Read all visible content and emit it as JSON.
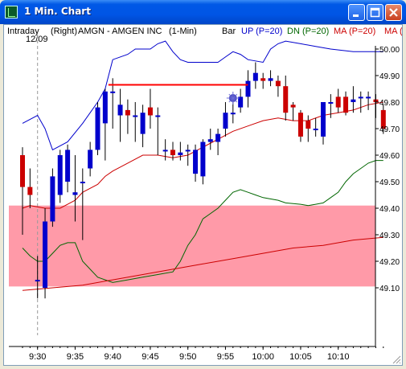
{
  "window": {
    "title": "1 Min. Chart"
  },
  "header": {
    "interval": "Intraday",
    "date": "12/09",
    "axis_side": "(Right)",
    "symbol": "AMGN - AMGEN INC",
    "period": "(1-Min)",
    "style": "Bar",
    "up_label": "UP (P=20)",
    "dn_label": "DN (P=20)",
    "ma_label": "MA (P=20)",
    "ma2_label": "MA ("
  },
  "colors": {
    "up_band": "#0000cc",
    "dn_band": "#006600",
    "ma": "#cc0000",
    "candle_up": "#0000cc",
    "candle_down": "#cc0000",
    "zone": "#ff9aa8",
    "resistance": "#ff0000"
  },
  "axis": {
    "y_ticks": [
      "50.00",
      "49.90",
      "49.80",
      "49.70",
      "49.60",
      "49.50",
      "49.40",
      "49.30",
      "49.20",
      "49.10"
    ],
    "x_ticks": [
      "9:30",
      "9:35",
      "9:40",
      "9:45",
      "9:50",
      "9:55",
      "10:00",
      "10:05",
      "10:10"
    ]
  },
  "chart_data": {
    "type": "candlestick",
    "y_min": 49.05,
    "y_max": 50.02,
    "zone": [
      49.105,
      49.41
    ],
    "resistance": {
      "price": 49.865,
      "from_bar": 11,
      "to_bar": 30
    },
    "marker": {
      "bar": 28,
      "price": 49.815
    },
    "candles": [
      [
        49.6,
        49.63,
        49.3,
        49.48
      ],
      [
        49.48,
        49.55,
        49.4,
        49.45
      ],
      [
        49.13,
        49.22,
        49.06,
        49.13
      ],
      [
        49.1,
        49.4,
        49.06,
        49.35
      ],
      [
        49.35,
        49.55,
        49.33,
        49.52
      ],
      [
        49.45,
        49.62,
        49.42,
        49.6
      ],
      [
        49.5,
        49.64,
        49.46,
        49.62
      ],
      [
        49.45,
        49.6,
        49.35,
        49.46
      ],
      [
        49.5,
        49.55,
        49.28,
        49.5
      ],
      [
        49.55,
        49.65,
        49.52,
        49.62
      ],
      [
        49.62,
        49.8,
        49.6,
        49.78
      ],
      [
        49.72,
        49.85,
        49.58,
        49.84
      ],
      [
        49.84,
        49.89,
        49.7,
        49.84
      ],
      [
        49.75,
        49.85,
        49.65,
        49.79
      ],
      [
        49.77,
        49.81,
        49.68,
        49.75
      ],
      [
        49.75,
        49.8,
        49.65,
        49.75
      ],
      [
        49.68,
        49.79,
        49.63,
        49.76
      ],
      [
        49.78,
        49.85,
        49.7,
        49.75
      ],
      [
        49.75,
        49.78,
        49.6,
        49.75
      ],
      [
        49.62,
        49.66,
        49.58,
        49.62
      ],
      [
        49.62,
        49.65,
        49.58,
        49.6
      ],
      [
        49.6,
        49.65,
        49.58,
        49.61
      ],
      [
        49.62,
        49.64,
        49.56,
        49.62
      ],
      [
        49.53,
        49.64,
        49.5,
        49.62
      ],
      [
        49.52,
        49.66,
        49.49,
        49.65
      ],
      [
        49.65,
        49.7,
        49.62,
        49.66
      ],
      [
        49.65,
        49.7,
        49.6,
        49.68
      ],
      [
        49.7,
        49.8,
        49.67,
        49.76
      ],
      [
        49.76,
        49.8,
        49.72,
        49.76
      ],
      [
        49.78,
        49.85,
        49.76,
        49.82
      ],
      [
        49.82,
        49.92,
        49.78,
        49.88
      ],
      [
        49.88,
        49.95,
        49.85,
        49.91
      ],
      [
        49.89,
        49.91,
        49.85,
        49.88
      ],
      [
        49.88,
        49.92,
        49.86,
        49.89
      ],
      [
        49.88,
        49.9,
        49.82,
        49.86
      ],
      [
        49.86,
        49.9,
        49.73,
        49.76
      ],
      [
        49.79,
        49.8,
        49.73,
        49.78
      ],
      [
        49.76,
        49.77,
        49.65,
        49.67
      ],
      [
        49.73,
        49.75,
        49.65,
        49.7
      ],
      [
        49.7,
        49.74,
        49.67,
        49.7
      ],
      [
        49.67,
        49.8,
        49.64,
        49.8
      ],
      [
        49.8,
        49.83,
        49.74,
        49.8
      ],
      [
        49.82,
        49.85,
        49.76,
        49.78
      ],
      [
        49.82,
        49.84,
        49.75,
        49.76
      ],
      [
        49.8,
        49.86,
        49.76,
        49.81
      ],
      [
        49.82,
        49.84,
        49.76,
        49.82
      ],
      [
        49.82,
        49.84,
        49.77,
        49.82
      ],
      [
        49.81,
        49.83,
        49.74,
        49.8
      ],
      [
        49.77,
        49.79,
        49.68,
        49.7
      ]
    ],
    "up_band": [
      [
        0,
        49.72
      ],
      [
        2,
        49.75
      ],
      [
        3,
        49.7
      ],
      [
        4,
        49.62
      ],
      [
        6,
        49.65
      ],
      [
        8,
        49.72
      ],
      [
        10,
        49.8
      ],
      [
        11,
        49.85
      ],
      [
        12,
        49.96
      ],
      [
        14,
        49.98
      ],
      [
        15,
        50.0
      ],
      [
        17,
        50.0
      ],
      [
        18,
        50.02
      ],
      [
        19,
        50.03
      ],
      [
        20,
        49.99
      ],
      [
        21,
        49.96
      ],
      [
        22,
        49.95
      ],
      [
        24,
        49.95
      ],
      [
        26,
        49.95
      ],
      [
        27,
        49.97
      ],
      [
        28,
        49.99
      ],
      [
        29,
        49.98
      ],
      [
        30,
        49.96
      ],
      [
        32,
        49.95
      ],
      [
        33,
        50.0
      ],
      [
        34,
        50.02
      ],
      [
        35,
        50.03
      ],
      [
        37,
        50.02
      ],
      [
        39,
        50.01
      ],
      [
        41,
        50.0
      ],
      [
        44,
        49.99
      ],
      [
        46,
        49.99
      ],
      [
        48,
        49.99
      ]
    ],
    "dn_band": [
      [
        0,
        49.25
      ],
      [
        1,
        49.22
      ],
      [
        2,
        49.2
      ],
      [
        3,
        49.2
      ],
      [
        4,
        49.23
      ],
      [
        5,
        49.26
      ],
      [
        6,
        49.27
      ],
      [
        7,
        49.27
      ],
      [
        8,
        49.2
      ],
      [
        10,
        49.14
      ],
      [
        11,
        49.13
      ],
      [
        12,
        49.12
      ],
      [
        14,
        49.13
      ],
      [
        16,
        49.14
      ],
      [
        18,
        49.15
      ],
      [
        20,
        49.16
      ],
      [
        21,
        49.2
      ],
      [
        22,
        49.26
      ],
      [
        23,
        49.3
      ],
      [
        24,
        49.36
      ],
      [
        25,
        49.38
      ],
      [
        26,
        49.4
      ],
      [
        27,
        49.43
      ],
      [
        28,
        49.46
      ],
      [
        29,
        49.47
      ],
      [
        30,
        49.46
      ],
      [
        31,
        49.45
      ],
      [
        32,
        49.44
      ],
      [
        34,
        49.43
      ],
      [
        35,
        49.42
      ],
      [
        37,
        49.415
      ],
      [
        38,
        49.41
      ],
      [
        39,
        49.415
      ],
      [
        40,
        49.42
      ],
      [
        41,
        49.44
      ],
      [
        42,
        49.46
      ],
      [
        43,
        49.5
      ],
      [
        44,
        49.53
      ],
      [
        45,
        49.55
      ],
      [
        46,
        49.57
      ],
      [
        47,
        49.58
      ],
      [
        48,
        49.58
      ]
    ],
    "ma": [
      [
        0,
        49.4
      ],
      [
        1,
        49.41
      ],
      [
        3,
        49.4
      ],
      [
        5,
        49.4
      ],
      [
        7,
        49.43
      ],
      [
        8,
        49.46
      ],
      [
        10,
        49.49
      ],
      [
        11,
        49.52
      ],
      [
        12,
        49.54
      ],
      [
        14,
        49.57
      ],
      [
        16,
        49.6
      ],
      [
        18,
        49.6
      ],
      [
        20,
        49.59
      ],
      [
        22,
        49.6
      ],
      [
        24,
        49.63
      ],
      [
        26,
        49.66
      ],
      [
        28,
        49.69
      ],
      [
        30,
        49.71
      ],
      [
        32,
        49.73
      ],
      [
        34,
        49.74
      ],
      [
        36,
        49.73
      ],
      [
        38,
        49.73
      ],
      [
        40,
        49.75
      ],
      [
        42,
        49.76
      ],
      [
        44,
        49.77
      ],
      [
        46,
        49.79
      ],
      [
        48,
        49.8
      ]
    ],
    "ma_long": [
      [
        0,
        49.09
      ],
      [
        4,
        49.1
      ],
      [
        8,
        49.11
      ],
      [
        12,
        49.13
      ],
      [
        16,
        49.15
      ],
      [
        20,
        49.17
      ],
      [
        24,
        49.19
      ],
      [
        28,
        49.21
      ],
      [
        32,
        49.23
      ],
      [
        36,
        49.25
      ],
      [
        40,
        49.26
      ],
      [
        44,
        49.28
      ],
      [
        48,
        49.29
      ]
    ]
  }
}
